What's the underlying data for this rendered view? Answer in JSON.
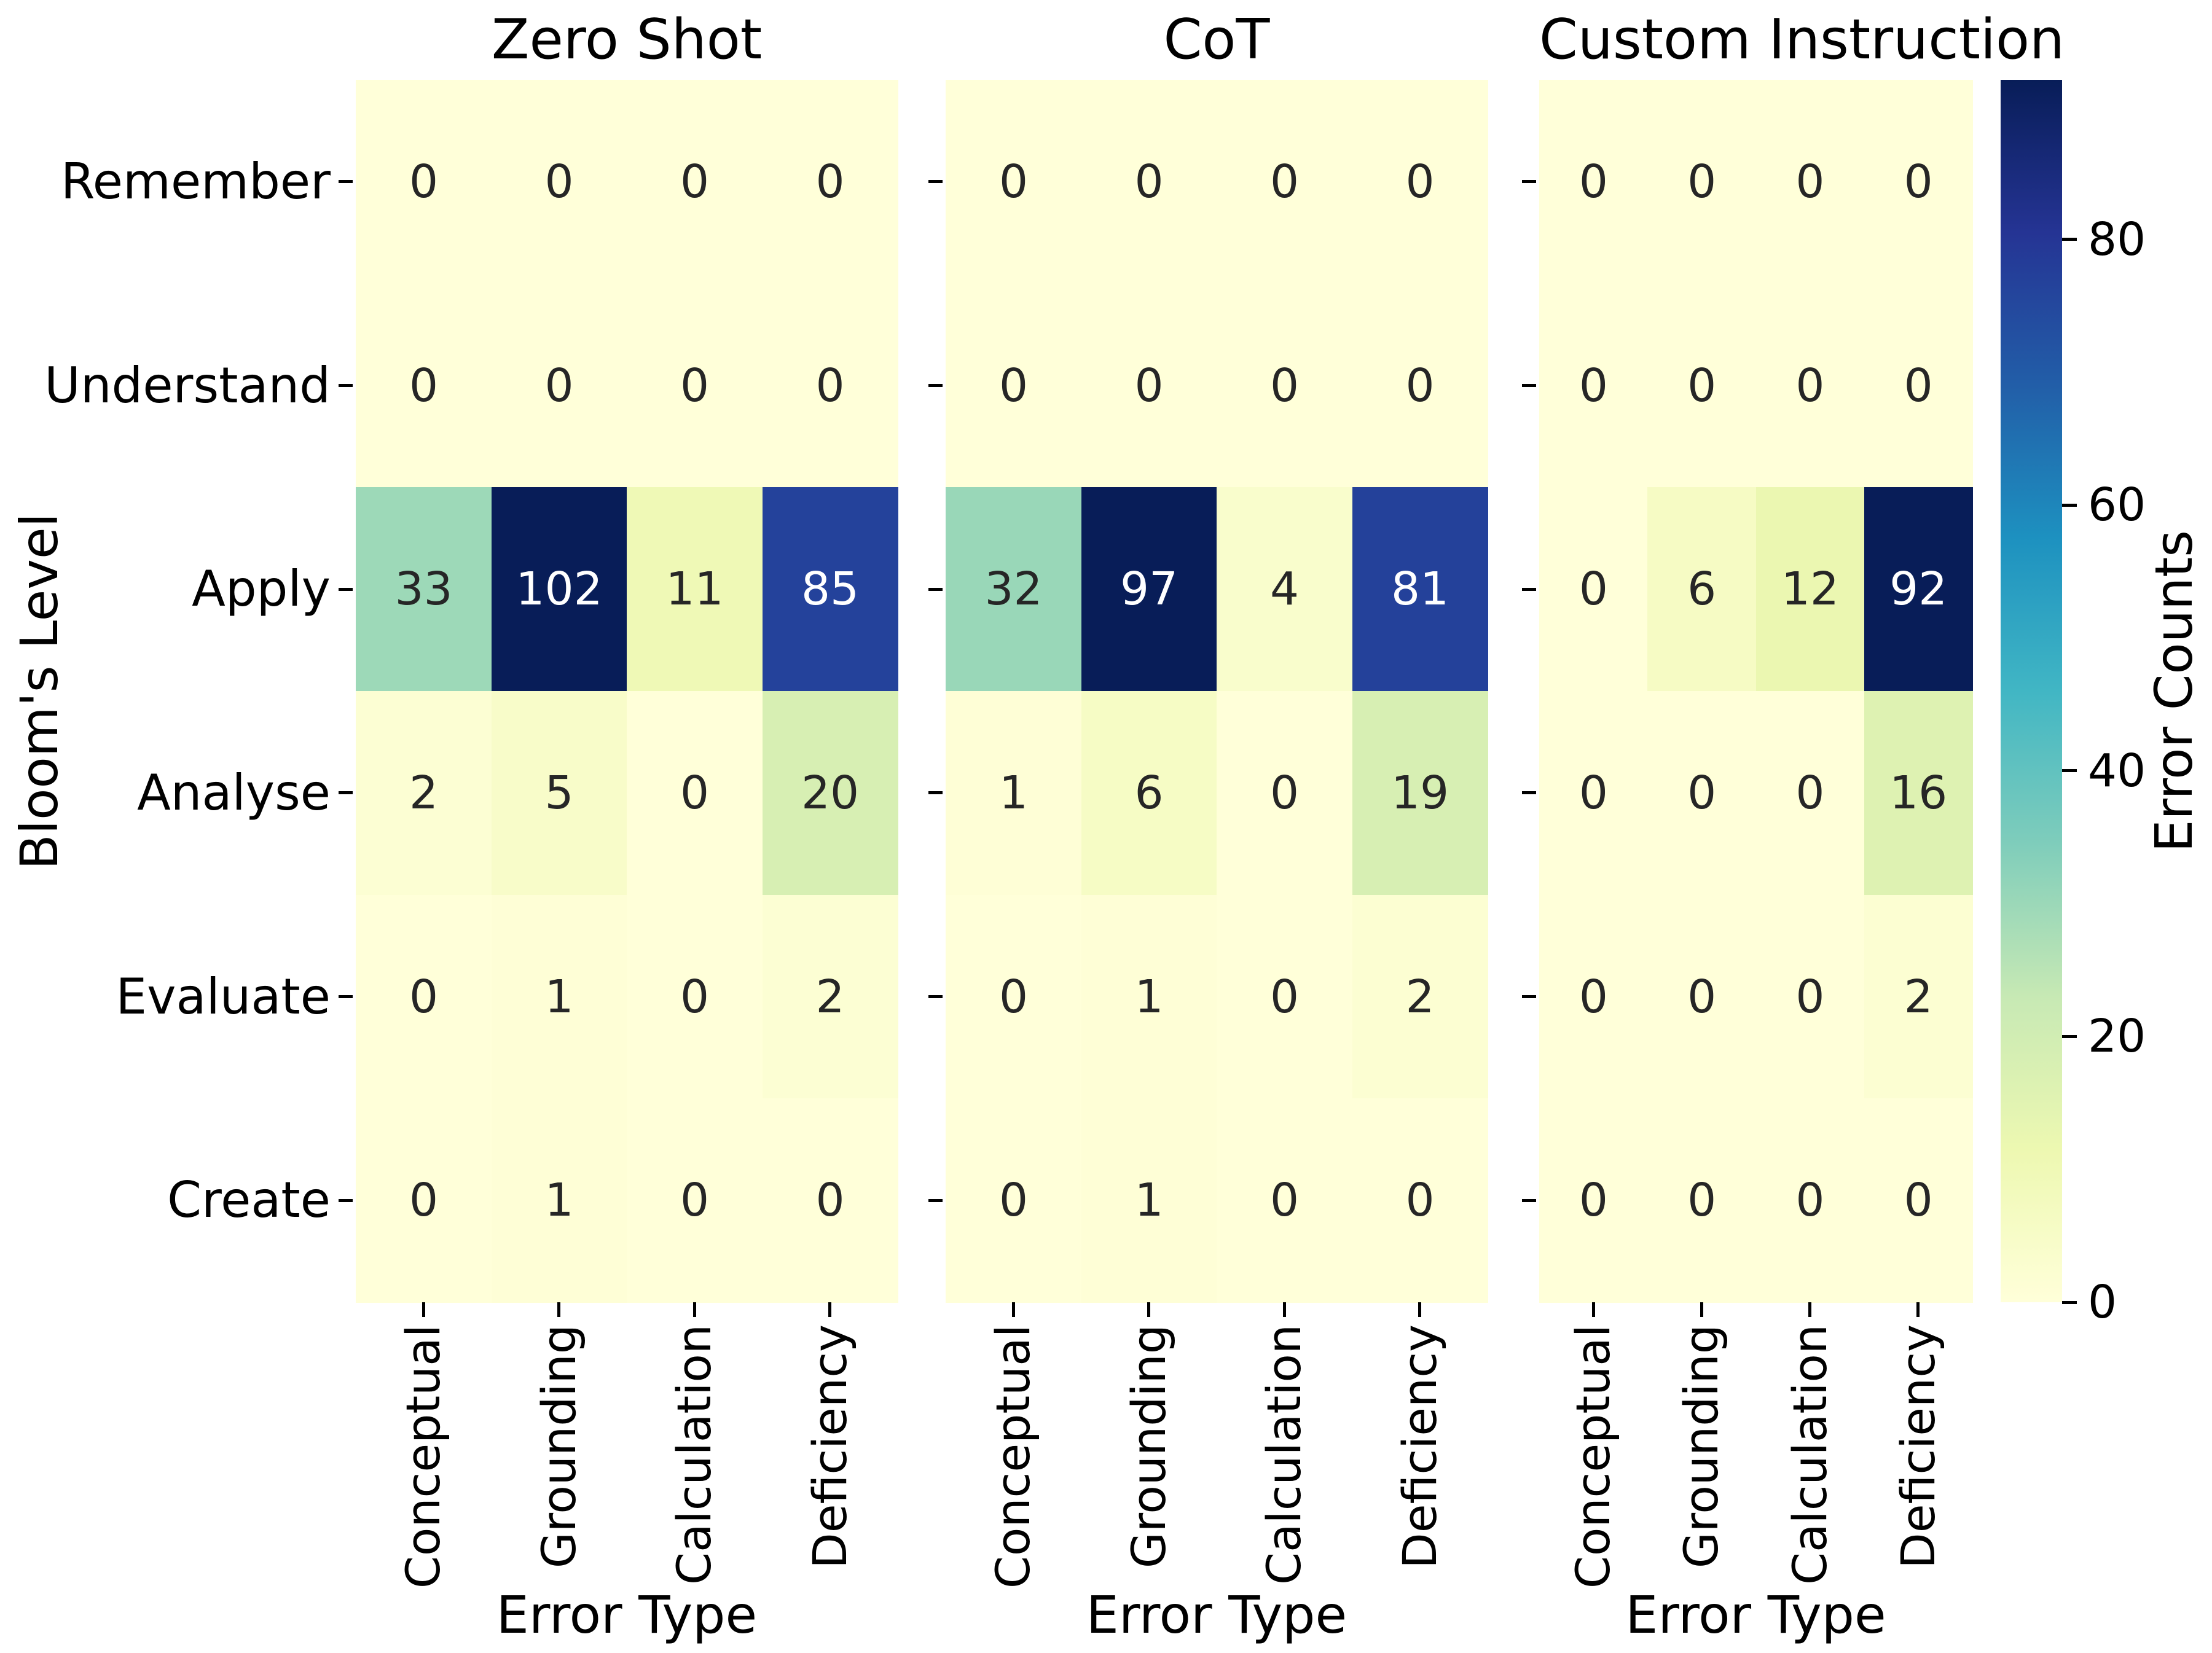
{
  "chart_data": {
    "type": "heatmap",
    "colormap": "YlGnBu",
    "rows": [
      "Remember",
      "Understand",
      "Apply",
      "Analyse",
      "Evaluate",
      "Create"
    ],
    "columns": [
      "Conceptual",
      "Grounding",
      "Calculation",
      "Deficiency"
    ],
    "ylabel": "Bloom's Level",
    "panels": [
      {
        "title": "Zero Shot",
        "xlabel": "Error Type",
        "vmin": 0,
        "vmax": 102,
        "values": [
          [
            0,
            0,
            0,
            0
          ],
          [
            0,
            0,
            0,
            0
          ],
          [
            33,
            102,
            11,
            85
          ],
          [
            2,
            5,
            0,
            20
          ],
          [
            0,
            1,
            0,
            2
          ],
          [
            0,
            1,
            0,
            0
          ]
        ]
      },
      {
        "title": "CoT",
        "xlabel": "Error Type",
        "vmin": 0,
        "vmax": 97,
        "values": [
          [
            0,
            0,
            0,
            0
          ],
          [
            0,
            0,
            0,
            0
          ],
          [
            32,
            97,
            4,
            81
          ],
          [
            1,
            6,
            0,
            19
          ],
          [
            0,
            1,
            0,
            2
          ],
          [
            0,
            1,
            0,
            0
          ]
        ]
      },
      {
        "title": "Custom Instruction",
        "xlabel": "Error Type",
        "vmin": 0,
        "vmax": 92,
        "values": [
          [
            0,
            0,
            0,
            0
          ],
          [
            0,
            0,
            0,
            0
          ],
          [
            0,
            6,
            12,
            92
          ],
          [
            0,
            0,
            0,
            16
          ],
          [
            0,
            0,
            0,
            2
          ],
          [
            0,
            0,
            0,
            0
          ]
        ]
      }
    ],
    "colorbar": {
      "label": "Error Counts",
      "ticks": [
        0,
        20,
        40,
        60,
        80
      ],
      "vmin": 0,
      "vmax": 92
    },
    "colormap_stops": [
      "#ffffd9",
      "#edf8b1",
      "#c7e9b4",
      "#7fcdbb",
      "#41b6c4",
      "#1d91c0",
      "#225ea8",
      "#253494",
      "#081d58"
    ],
    "annot_dark_color": "#262626",
    "annot_light_color": "#ffffff",
    "grid": false,
    "legend_position": "right-colorbar"
  }
}
